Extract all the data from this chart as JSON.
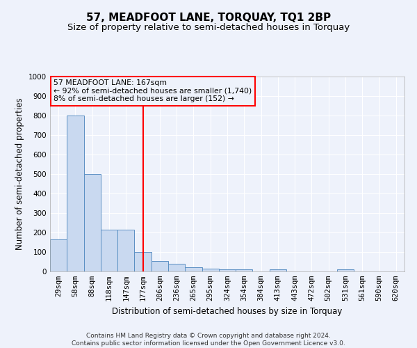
{
  "title": "57, MEADFOOT LANE, TORQUAY, TQ1 2BP",
  "subtitle": "Size of property relative to semi-detached houses in Torquay",
  "xlabel": "Distribution of semi-detached houses by size in Torquay",
  "ylabel": "Number of semi-detached properties",
  "categories": [
    "29sqm",
    "58sqm",
    "88sqm",
    "118sqm",
    "147sqm",
    "177sqm",
    "206sqm",
    "236sqm",
    "265sqm",
    "295sqm",
    "324sqm",
    "354sqm",
    "384sqm",
    "413sqm",
    "443sqm",
    "472sqm",
    "502sqm",
    "531sqm",
    "561sqm",
    "590sqm",
    "620sqm"
  ],
  "values": [
    165,
    800,
    500,
    215,
    215,
    100,
    55,
    40,
    20,
    15,
    10,
    10,
    0,
    10,
    0,
    0,
    0,
    10,
    0,
    0,
    0
  ],
  "bar_color": "#c9d9f0",
  "bar_edge_color": "#5a8fc3",
  "background_color": "#eef2fb",
  "grid_color": "#ffffff",
  "vline_x": 5.0,
  "vline_color": "red",
  "annotation_text": "57 MEADFOOT LANE: 167sqm\n← 92% of semi-detached houses are smaller (1,740)\n8% of semi-detached houses are larger (152) →",
  "annotation_box_color": "red",
  "ylim": [
    0,
    1000
  ],
  "yticks": [
    0,
    100,
    200,
    300,
    400,
    500,
    600,
    700,
    800,
    900,
    1000
  ],
  "footnote": "Contains HM Land Registry data © Crown copyright and database right 2024.\nContains public sector information licensed under the Open Government Licence v3.0.",
  "title_fontsize": 11,
  "subtitle_fontsize": 9.5,
  "label_fontsize": 8.5,
  "tick_fontsize": 7.5,
  "footnote_fontsize": 6.5
}
